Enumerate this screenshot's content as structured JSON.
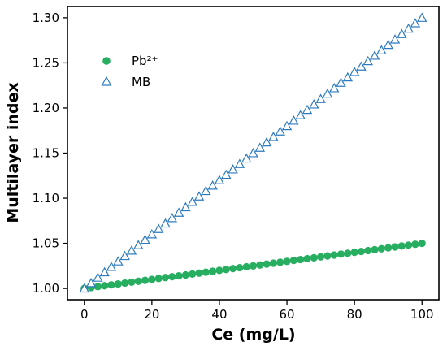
{
  "chart_data": {
    "type": "scatter",
    "title": "",
    "xlabel": "Ce (mg/L)",
    "ylabel": "Multilayer index",
    "xlim": [
      -5,
      105
    ],
    "ylim": [
      0.9875,
      1.3125
    ],
    "xticks": [
      0,
      20,
      40,
      60,
      80,
      100
    ],
    "yticks": [
      1.0,
      1.05,
      1.1,
      1.15,
      1.2,
      1.25,
      1.3
    ],
    "xtick_labels": [
      "0",
      "20",
      "40",
      "60",
      "80",
      "100"
    ],
    "ytick_labels": [
      "1.00",
      "1.05",
      "1.10",
      "1.15",
      "1.20",
      "1.25",
      "1.30"
    ],
    "grid": false,
    "legend_position": "upper-left",
    "x": [
      0,
      2,
      4,
      6,
      8,
      10,
      12,
      14,
      16,
      18,
      20,
      22,
      24,
      26,
      28,
      30,
      32,
      34,
      36,
      38,
      40,
      42,
      44,
      46,
      48,
      50,
      52,
      54,
      56,
      58,
      60,
      62,
      64,
      66,
      68,
      70,
      72,
      74,
      76,
      78,
      80,
      82,
      84,
      86,
      88,
      90,
      92,
      94,
      96,
      98,
      100
    ],
    "series": [
      {
        "name": "Pb²⁺",
        "marker": "filled-circle",
        "color": "#27ae60",
        "values": [
          1.0,
          1.001,
          1.002,
          1.003,
          1.004,
          1.005,
          1.006,
          1.007,
          1.008,
          1.009,
          1.01,
          1.011,
          1.012,
          1.013,
          1.014,
          1.015,
          1.016,
          1.017,
          1.018,
          1.019,
          1.02,
          1.021,
          1.022,
          1.023,
          1.024,
          1.025,
          1.026,
          1.027,
          1.028,
          1.029,
          1.03,
          1.031,
          1.032,
          1.033,
          1.034,
          1.035,
          1.036,
          1.037,
          1.038,
          1.039,
          1.04,
          1.041,
          1.042,
          1.043,
          1.044,
          1.045,
          1.046,
          1.047,
          1.048,
          1.049,
          1.05
        ]
      },
      {
        "name": "MB",
        "marker": "open-triangle",
        "color": "#2e7bbf",
        "values": [
          1.0,
          1.006,
          1.012,
          1.018,
          1.024,
          1.03,
          1.036,
          1.042,
          1.048,
          1.054,
          1.06,
          1.066,
          1.072,
          1.078,
          1.084,
          1.09,
          1.096,
          1.102,
          1.108,
          1.114,
          1.12,
          1.126,
          1.132,
          1.138,
          1.144,
          1.15,
          1.156,
          1.162,
          1.168,
          1.174,
          1.18,
          1.186,
          1.192,
          1.198,
          1.204,
          1.21,
          1.216,
          1.222,
          1.228,
          1.234,
          1.24,
          1.246,
          1.252,
          1.258,
          1.264,
          1.27,
          1.276,
          1.282,
          1.288,
          1.294,
          1.3
        ]
      }
    ]
  }
}
